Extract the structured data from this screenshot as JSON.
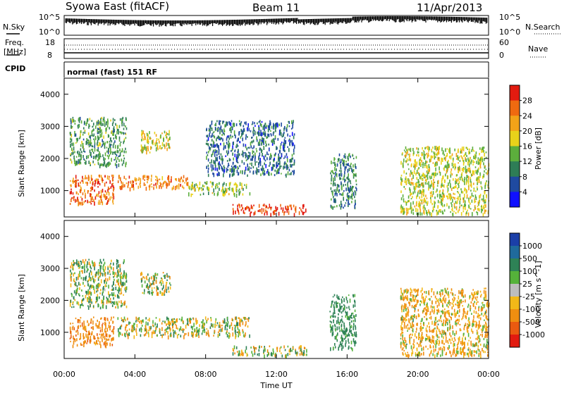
{
  "header": {
    "station": "Syowa East (fitACF)",
    "beam": "Beam 11",
    "date": "11/Apr/2013"
  },
  "left_labels": {
    "nsky": "N.Sky",
    "nsky_top": "10^5",
    "nsky_bottom": "10^0",
    "freq": "Freq.",
    "freq_unit": "[MHz]",
    "freq_top": "18",
    "freq_bottom": "8",
    "cpid": "CPID"
  },
  "right_labels": {
    "nsearch": "N.Search",
    "nsearch_top": "10^5",
    "nsearch_bottom": "10^0",
    "nave": "Nave",
    "nave_top": "60",
    "nave_bottom": "0"
  },
  "cpid_text": "normal (fast) 151 RF",
  "xaxis": {
    "label": "Time UT",
    "ticks": [
      "00:00",
      "04:00",
      "08:00",
      "12:00",
      "16:00",
      "20:00",
      "00:00"
    ]
  },
  "power_panel": {
    "ylabel": "Slant Range [km]",
    "yticks": [
      "1000",
      "2000",
      "3000",
      "4000"
    ],
    "colorbar_label": "Power [dB]",
    "colorbar_ticks": [
      "4",
      "8",
      "12",
      "16",
      "20",
      "24",
      "28"
    ],
    "colors": [
      "#1010ff",
      "#1f4aa0",
      "#2e7d56",
      "#5cae3c",
      "#e8d21a",
      "#f2a318",
      "#ef6a10",
      "#e21b10"
    ]
  },
  "velocity_panel": {
    "ylabel": "Slant Range [km]",
    "yticks": [
      "1000",
      "2000",
      "3000",
      "4000"
    ],
    "colorbar_label": "Velocity [m s^-1]",
    "colorbar_ticks": [
      "1000",
      "500",
      "100",
      "25",
      "-25",
      "-100",
      "-500",
      "-1000"
    ],
    "colors": [
      "#1b3fa8",
      "#1f6a9c",
      "#2e8256",
      "#55b23a",
      "#bdbdbd",
      "#f2b818",
      "#ef8e10",
      "#ea5a10",
      "#e21b10"
    ]
  },
  "chart_data": [
    {
      "type": "heatmap",
      "title": "Power",
      "x_ticks": [
        "00:00",
        "04:00",
        "08:00",
        "12:00",
        "16:00",
        "20:00",
        "00:00"
      ],
      "xlabel": "Time UT",
      "ylabel": "Slant Range [km]",
      "ylim": [
        180,
        4500
      ],
      "colorbar": {
        "label": "Power [dB]",
        "range": [
          0,
          32
        ]
      },
      "regions": [
        {
          "t_start": 0.3,
          "t_end": 2.8,
          "r_min": 600,
          "r_max": 1500,
          "value": 26
        },
        {
          "t_start": 0.3,
          "t_end": 3.5,
          "r_min": 1800,
          "r_max": 3300,
          "value": 12
        },
        {
          "t_start": 4.3,
          "t_end": 6.0,
          "r_min": 2200,
          "r_max": 2900,
          "value": 18
        },
        {
          "t_start": 3.0,
          "t_end": 7.0,
          "r_min": 1100,
          "r_max": 1500,
          "value": 24
        },
        {
          "t_start": 7.0,
          "t_end": 10.5,
          "r_min": 900,
          "r_max": 1300,
          "value": 16
        },
        {
          "t_start": 9.5,
          "t_end": 13.7,
          "r_min": 300,
          "r_max": 600,
          "value": 29
        },
        {
          "t_start": 8.0,
          "t_end": 13.0,
          "r_min": 1500,
          "r_max": 3200,
          "value": 8
        },
        {
          "t_start": 15.0,
          "t_end": 16.5,
          "r_min": 500,
          "r_max": 2200,
          "value": 10
        },
        {
          "t_start": 19.0,
          "t_end": 24.0,
          "r_min": 300,
          "r_max": 2400,
          "value": 17
        }
      ]
    },
    {
      "type": "heatmap",
      "title": "Velocity",
      "x_ticks": [
        "00:00",
        "04:00",
        "08:00",
        "12:00",
        "16:00",
        "20:00",
        "00:00"
      ],
      "xlabel": "Time UT",
      "ylabel": "Slant Range [km]",
      "ylim": [
        180,
        4500
      ],
      "colorbar": {
        "label": "Velocity [m s^-1]",
        "range": [
          -1000,
          1000
        ]
      },
      "regions": [
        {
          "t_start": 0.3,
          "t_end": 2.8,
          "r_min": 600,
          "r_max": 1500,
          "value": -200
        },
        {
          "t_start": 0.3,
          "t_end": 3.5,
          "r_min": 1800,
          "r_max": 3300,
          "value": 50
        },
        {
          "t_start": 4.3,
          "t_end": 6.0,
          "r_min": 2200,
          "r_max": 2900,
          "value": 0
        },
        {
          "t_start": 3.0,
          "t_end": 10.5,
          "r_min": 900,
          "r_max": 1500,
          "value": 0
        },
        {
          "t_start": 9.5,
          "t_end": 13.7,
          "r_min": 300,
          "r_max": 600,
          "value": 0
        },
        {
          "t_start": 15.0,
          "t_end": 16.5,
          "r_min": 500,
          "r_max": 2200,
          "value": 150
        },
        {
          "t_start": 19.0,
          "t_end": 24.0,
          "r_min": 300,
          "r_max": 2400,
          "value": -80
        }
      ]
    }
  ]
}
